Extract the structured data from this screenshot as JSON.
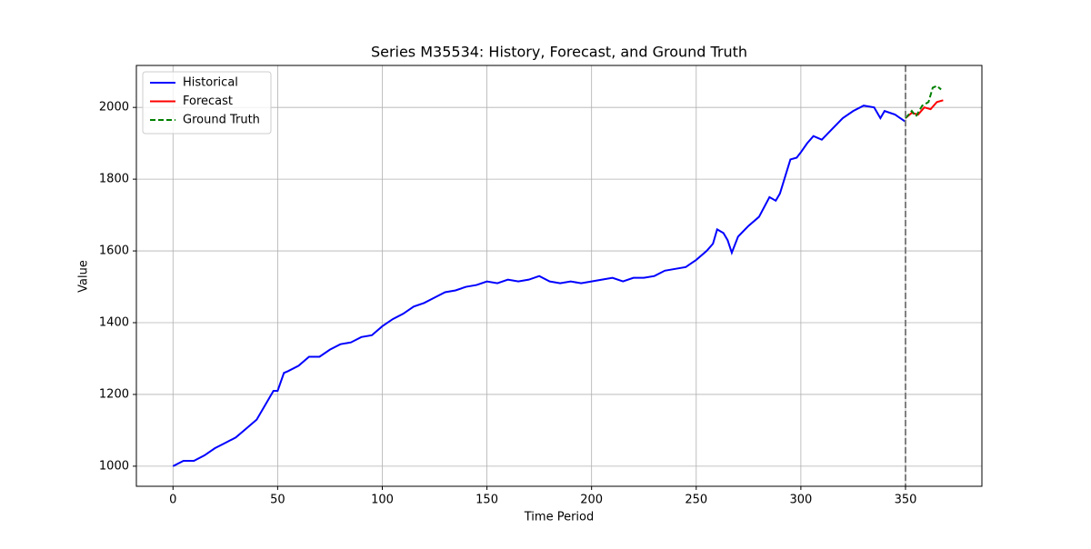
{
  "chart_data": {
    "type": "line",
    "title": "Series M35534: History, Forecast, and Ground Truth",
    "x_label": "Time Period",
    "y_label": "Value",
    "xlim": [
      -17.5,
      386.5
    ],
    "ylim": [
      944,
      2117
    ],
    "xticks": [
      0,
      50,
      100,
      150,
      200,
      250,
      300,
      350
    ],
    "yticks": [
      1000,
      1200,
      1400,
      1600,
      1800,
      2000
    ],
    "grid": true,
    "legend": "upper-left",
    "vline": {
      "x": 350,
      "color": "#808080"
    },
    "series": [
      {
        "name": "Historical",
        "color": "#0000ff",
        "dash": false,
        "x": [
          0,
          5,
          10,
          15,
          20,
          25,
          30,
          35,
          40,
          45,
          48,
          50,
          53,
          55,
          60,
          65,
          70,
          75,
          80,
          85,
          90,
          95,
          100,
          105,
          110,
          115,
          120,
          125,
          130,
          135,
          140,
          145,
          150,
          155,
          160,
          165,
          170,
          175,
          180,
          185,
          190,
          195,
          200,
          205,
          210,
          215,
          220,
          225,
          230,
          235,
          240,
          245,
          250,
          255,
          258,
          260,
          263,
          265,
          267,
          270,
          275,
          280,
          285,
          288,
          290,
          295,
          298,
          300,
          303,
          306,
          310,
          315,
          320,
          325,
          330,
          335,
          338,
          340,
          345,
          350
        ],
        "values": [
          1000,
          1015,
          1015,
          1030,
          1050,
          1065,
          1080,
          1105,
          1130,
          1180,
          1210,
          1210,
          1260,
          1265,
          1280,
          1305,
          1305,
          1325,
          1340,
          1345,
          1360,
          1365,
          1390,
          1410,
          1425,
          1445,
          1455,
          1470,
          1485,
          1490,
          1500,
          1505,
          1515,
          1510,
          1520,
          1515,
          1520,
          1530,
          1515,
          1510,
          1515,
          1510,
          1515,
          1520,
          1525,
          1515,
          1525,
          1525,
          1530,
          1545,
          1550,
          1555,
          1575,
          1600,
          1620,
          1660,
          1650,
          1630,
          1595,
          1640,
          1670,
          1695,
          1750,
          1740,
          1760,
          1855,
          1860,
          1875,
          1900,
          1920,
          1910,
          1940,
          1970,
          1990,
          2005,
          2000,
          1970,
          1990,
          1980,
          1960
        ]
      },
      {
        "name": "Forecast",
        "color": "#ff0000",
        "dash": false,
        "x": [
          350,
          353,
          356,
          359,
          362,
          365,
          368
        ],
        "values": [
          1970,
          1985,
          1980,
          2000,
          1995,
          2015,
          2020
        ]
      },
      {
        "name": "Ground Truth",
        "color": "#008000",
        "dash": true,
        "x": [
          350,
          353,
          355,
          358,
          361,
          363,
          365,
          367
        ],
        "values": [
          1970,
          1990,
          1975,
          2005,
          2015,
          2055,
          2060,
          2050
        ]
      }
    ]
  }
}
